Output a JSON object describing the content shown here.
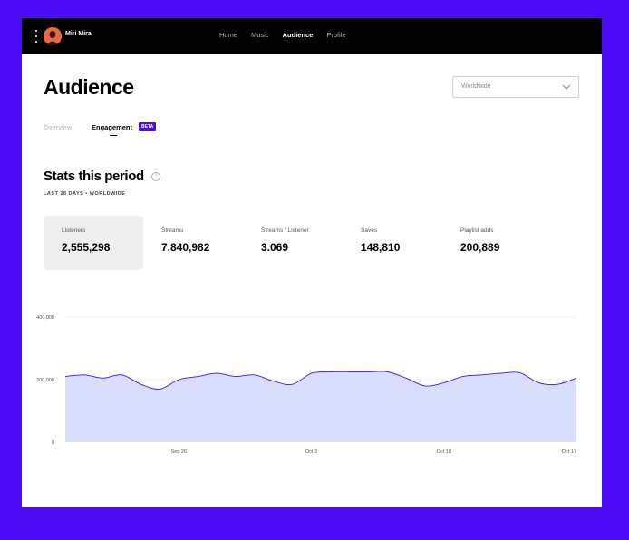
{
  "user": {
    "name": "Miri Mira"
  },
  "nav": [
    {
      "label": "Home",
      "active": false
    },
    {
      "label": "Music",
      "active": false
    },
    {
      "label": "Audience",
      "active": true
    },
    {
      "label": "Profile",
      "active": false
    }
  ],
  "page": {
    "title": "Audience"
  },
  "region_select": {
    "value": "Worldwide"
  },
  "tabs": [
    {
      "label": "Overview",
      "active": false
    },
    {
      "label": "Engagement",
      "active": true,
      "badge": "BETA"
    }
  ],
  "stats": {
    "title": "Stats this period",
    "subtitle": "LAST 28 DAYS • WORLDWIDE",
    "cards": [
      {
        "label": "Listeners",
        "value": "2,555,298",
        "selected": true
      },
      {
        "label": "Streams",
        "value": "7,840,982",
        "selected": false
      },
      {
        "label": "Streams / Listener",
        "value": "3.069",
        "selected": false
      },
      {
        "label": "Saves",
        "value": "148,810",
        "selected": false
      },
      {
        "label": "Playlist adds",
        "value": "200,889",
        "selected": false
      }
    ]
  },
  "colors": {
    "accent": "#4b0cf5",
    "line": "#4b0cf5",
    "fill": "#d9defc"
  },
  "chart_data": {
    "type": "area",
    "y_ticks": [
      "400,000",
      "200,000",
      "0"
    ],
    "ylim": [
      0,
      400000
    ],
    "x_ticks": [
      "Sep 26",
      "Oct 3",
      "Oct 10",
      "Oct 17"
    ],
    "x": [
      "Sep 20",
      "Sep 21",
      "Sep 22",
      "Sep 23",
      "Sep 24",
      "Sep 25",
      "Sep 26",
      "Sep 27",
      "Sep 28",
      "Sep 29",
      "Sep 30",
      "Oct 1",
      "Oct 2",
      "Oct 3",
      "Oct 4",
      "Oct 5",
      "Oct 6",
      "Oct 7",
      "Oct 8",
      "Oct 9",
      "Oct 10",
      "Oct 11",
      "Oct 12",
      "Oct 13",
      "Oct 14",
      "Oct 15",
      "Oct 16",
      "Oct 17"
    ],
    "series": [
      {
        "values": [
          210000,
          215000,
          205000,
          215000,
          185000,
          170000,
          200000,
          210000,
          220000,
          210000,
          215000,
          195000,
          185000,
          220000,
          225000,
          225000,
          225000,
          225000,
          205000,
          180000,
          190000,
          210000,
          215000,
          220000,
          222000,
          190000,
          185000,
          205000
        ]
      }
    ]
  }
}
